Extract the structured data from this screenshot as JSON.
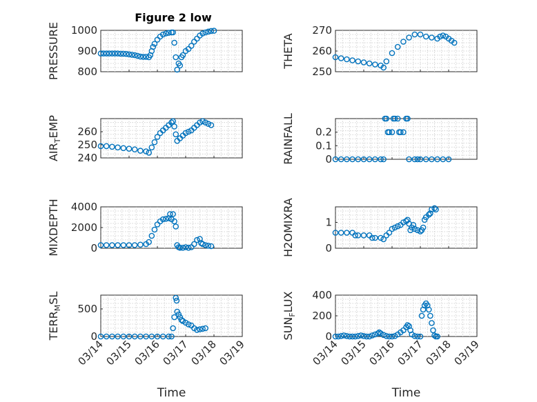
{
  "figure": {
    "title": "Figure 2 low",
    "marker_color": "#0072bd"
  },
  "chart_data": [
    {
      "type": "scatter",
      "ylabel": "PRESSURE",
      "xlabel": "",
      "xlim": [
        0,
        5
      ],
      "ylim": [
        800,
        1000
      ],
      "yticks": [
        800,
        900,
        1000
      ],
      "xticks": [],
      "grid": true,
      "points": [
        [
          0,
          888
        ],
        [
          0.1,
          888
        ],
        [
          0.2,
          888
        ],
        [
          0.3,
          888
        ],
        [
          0.4,
          888
        ],
        [
          0.5,
          888
        ],
        [
          0.6,
          888
        ],
        [
          0.7,
          887
        ],
        [
          0.8,
          887
        ],
        [
          0.9,
          886
        ],
        [
          1.0,
          884
        ],
        [
          1.1,
          882
        ],
        [
          1.2,
          880
        ],
        [
          1.3,
          877
        ],
        [
          1.4,
          873
        ],
        [
          1.5,
          872
        ],
        [
          1.6,
          872
        ],
        [
          1.7,
          870
        ],
        [
          1.75,
          880
        ],
        [
          1.8,
          900
        ],
        [
          1.85,
          920
        ],
        [
          1.9,
          935
        ],
        [
          2.0,
          955
        ],
        [
          2.1,
          970
        ],
        [
          2.2,
          980
        ],
        [
          2.3,
          985
        ],
        [
          2.4,
          988
        ],
        [
          2.5,
          990
        ],
        [
          2.55,
          990
        ],
        [
          2.6,
          940
        ],
        [
          2.65,
          870
        ],
        [
          2.7,
          810
        ],
        [
          2.75,
          840
        ],
        [
          2.8,
          830
        ],
        [
          2.85,
          870
        ],
        [
          2.9,
          880
        ],
        [
          3.0,
          900
        ],
        [
          3.1,
          910
        ],
        [
          3.2,
          925
        ],
        [
          3.3,
          945
        ],
        [
          3.4,
          960
        ],
        [
          3.5,
          975
        ],
        [
          3.6,
          985
        ],
        [
          3.7,
          990
        ],
        [
          3.8,
          994
        ],
        [
          3.9,
          997
        ],
        [
          4.0,
          998
        ]
      ]
    },
    {
      "type": "scatter",
      "ylabel": "THETA",
      "xlabel": "",
      "xlim": [
        0,
        5
      ],
      "ylim": [
        250,
        270
      ],
      "yticks": [
        250,
        260,
        270
      ],
      "xticks": [],
      "grid": true,
      "points": [
        [
          0,
          257
        ],
        [
          0.2,
          256.5
        ],
        [
          0.4,
          256
        ],
        [
          0.6,
          255.5
        ],
        [
          0.8,
          255
        ],
        [
          1.0,
          254.5
        ],
        [
          1.2,
          254
        ],
        [
          1.4,
          253.5
        ],
        [
          1.6,
          253
        ],
        [
          1.7,
          252
        ],
        [
          1.8,
          255
        ],
        [
          2.0,
          259
        ],
        [
          2.2,
          262
        ],
        [
          2.4,
          264.5
        ],
        [
          2.6,
          266.5
        ],
        [
          2.8,
          268
        ],
        [
          3.0,
          268
        ],
        [
          3.2,
          267
        ],
        [
          3.4,
          266.5
        ],
        [
          3.6,
          266
        ],
        [
          3.7,
          267
        ],
        [
          3.8,
          267.5
        ],
        [
          3.9,
          267
        ],
        [
          4.0,
          266
        ],
        [
          4.1,
          265
        ],
        [
          4.2,
          264
        ]
      ]
    },
    {
      "type": "scatter",
      "ylabel": "AIR_TEMP",
      "xlabel": "",
      "xlim": [
        0,
        5
      ],
      "ylim": [
        240,
        270
      ],
      "yticks": [
        240,
        250,
        260
      ],
      "xticks": [],
      "grid": true,
      "points": [
        [
          0,
          249
        ],
        [
          0.2,
          249
        ],
        [
          0.4,
          248.5
        ],
        [
          0.6,
          248
        ],
        [
          0.8,
          247.5
        ],
        [
          1.0,
          247
        ],
        [
          1.2,
          246.5
        ],
        [
          1.4,
          245.5
        ],
        [
          1.6,
          245
        ],
        [
          1.7,
          244
        ],
        [
          1.8,
          248
        ],
        [
          1.9,
          252
        ],
        [
          2.0,
          256
        ],
        [
          2.1,
          259
        ],
        [
          2.2,
          261
        ],
        [
          2.3,
          263
        ],
        [
          2.4,
          265
        ],
        [
          2.5,
          267
        ],
        [
          2.55,
          268
        ],
        [
          2.6,
          264
        ],
        [
          2.65,
          258
        ],
        [
          2.7,
          253
        ],
        [
          2.8,
          255
        ],
        [
          2.9,
          257
        ],
        [
          3.0,
          259
        ],
        [
          3.1,
          260
        ],
        [
          3.2,
          261
        ],
        [
          3.3,
          263
        ],
        [
          3.4,
          265
        ],
        [
          3.5,
          267
        ],
        [
          3.6,
          268
        ],
        [
          3.7,
          267
        ],
        [
          3.8,
          266
        ],
        [
          3.9,
          265
        ]
      ]
    },
    {
      "type": "scatter",
      "ylabel": "RAINFALL",
      "xlabel": "",
      "xlim": [
        0,
        5
      ],
      "ylim": [
        0,
        0.3
      ],
      "yticks": [
        0,
        0.1,
        0.2
      ],
      "xticks": [],
      "grid": true,
      "points": [
        [
          0,
          0
        ],
        [
          0.2,
          0
        ],
        [
          0.4,
          0
        ],
        [
          0.6,
          0
        ],
        [
          0.8,
          0
        ],
        [
          1.0,
          0
        ],
        [
          1.2,
          0
        ],
        [
          1.4,
          0
        ],
        [
          1.6,
          0
        ],
        [
          1.7,
          0
        ],
        [
          1.75,
          0.3
        ],
        [
          1.8,
          0.3
        ],
        [
          1.85,
          0.2
        ],
        [
          1.9,
          0.2
        ],
        [
          2.0,
          0.2
        ],
        [
          2.05,
          0.3
        ],
        [
          2.1,
          0.3
        ],
        [
          2.2,
          0.3
        ],
        [
          2.25,
          0.2
        ],
        [
          2.3,
          0.2
        ],
        [
          2.4,
          0.2
        ],
        [
          2.5,
          0.3
        ],
        [
          2.55,
          0.3
        ],
        [
          2.6,
          0
        ],
        [
          2.8,
          0
        ],
        [
          2.9,
          0
        ],
        [
          3.0,
          0
        ],
        [
          3.2,
          0
        ],
        [
          3.4,
          0
        ],
        [
          3.6,
          0
        ],
        [
          3.8,
          0
        ],
        [
          4.0,
          0
        ]
      ]
    },
    {
      "type": "scatter",
      "ylabel": "MIXDEPTH",
      "xlabel": "",
      "xlim": [
        0,
        5
      ],
      "ylim": [
        0,
        4000
      ],
      "yticks": [
        0,
        2000,
        4000
      ],
      "xticks": [],
      "grid": true,
      "points": [
        [
          0,
          300
        ],
        [
          0.2,
          300
        ],
        [
          0.4,
          300
        ],
        [
          0.6,
          300
        ],
        [
          0.8,
          300
        ],
        [
          1.0,
          300
        ],
        [
          1.2,
          300
        ],
        [
          1.4,
          350
        ],
        [
          1.6,
          400
        ],
        [
          1.7,
          600
        ],
        [
          1.8,
          1200
        ],
        [
          1.9,
          1800
        ],
        [
          2.0,
          2300
        ],
        [
          2.1,
          2600
        ],
        [
          2.2,
          2800
        ],
        [
          2.3,
          2850
        ],
        [
          2.4,
          2900
        ],
        [
          2.45,
          3300
        ],
        [
          2.5,
          2800
        ],
        [
          2.55,
          3300
        ],
        [
          2.6,
          2600
        ],
        [
          2.65,
          2100
        ],
        [
          2.7,
          300
        ],
        [
          2.75,
          100
        ],
        [
          2.8,
          50
        ],
        [
          2.9,
          50
        ],
        [
          3.0,
          100
        ],
        [
          3.1,
          50
        ],
        [
          3.2,
          100
        ],
        [
          3.3,
          400
        ],
        [
          3.4,
          800
        ],
        [
          3.5,
          900
        ],
        [
          3.55,
          500
        ],
        [
          3.6,
          400
        ],
        [
          3.7,
          300
        ],
        [
          3.8,
          250
        ],
        [
          3.9,
          200
        ]
      ]
    },
    {
      "type": "scatter",
      "ylabel": "H2OMIXRA",
      "xlabel": "",
      "xlim": [
        0,
        5
      ],
      "ylim": [
        0,
        1.6
      ],
      "yticks": [
        0,
        1
      ],
      "xticks": [],
      "grid": true,
      "points": [
        [
          0,
          0.6
        ],
        [
          0.2,
          0.6
        ],
        [
          0.4,
          0.6
        ],
        [
          0.6,
          0.6
        ],
        [
          0.7,
          0.5
        ],
        [
          0.8,
          0.5
        ],
        [
          1.0,
          0.5
        ],
        [
          1.2,
          0.5
        ],
        [
          1.3,
          0.4
        ],
        [
          1.4,
          0.4
        ],
        [
          1.6,
          0.4
        ],
        [
          1.7,
          0.35
        ],
        [
          1.8,
          0.5
        ],
        [
          1.9,
          0.6
        ],
        [
          2.0,
          0.75
        ],
        [
          2.1,
          0.8
        ],
        [
          2.2,
          0.85
        ],
        [
          2.3,
          0.9
        ],
        [
          2.4,
          1.0
        ],
        [
          2.5,
          1.05
        ],
        [
          2.55,
          1.1
        ],
        [
          2.6,
          0.95
        ],
        [
          2.65,
          0.7
        ],
        [
          2.7,
          0.8
        ],
        [
          2.75,
          0.9
        ],
        [
          2.8,
          0.75
        ],
        [
          2.9,
          0.7
        ],
        [
          3.0,
          0.65
        ],
        [
          3.05,
          0.7
        ],
        [
          3.1,
          0.8
        ],
        [
          3.15,
          1.1
        ],
        [
          3.2,
          1.2
        ],
        [
          3.3,
          1.3
        ],
        [
          3.35,
          1.35
        ],
        [
          3.4,
          1.5
        ],
        [
          3.5,
          1.55
        ],
        [
          3.55,
          1.5
        ]
      ]
    },
    {
      "type": "scatter",
      "ylabel": "TERR_MSL",
      "xlabel": "Time",
      "xlim": [
        0,
        5
      ],
      "ylim": [
        0,
        750
      ],
      "yticks": [
        0,
        500
      ],
      "xticks": [
        "03/14",
        "03/15",
        "03/16",
        "03/17",
        "03/18",
        "03/19"
      ],
      "grid": true,
      "points": [
        [
          0,
          0
        ],
        [
          0.2,
          0
        ],
        [
          0.4,
          0
        ],
        [
          0.6,
          0
        ],
        [
          0.8,
          0
        ],
        [
          1.0,
          0
        ],
        [
          1.2,
          0
        ],
        [
          1.4,
          0
        ],
        [
          1.6,
          0
        ],
        [
          1.8,
          0
        ],
        [
          2.0,
          0
        ],
        [
          2.2,
          0
        ],
        [
          2.4,
          0
        ],
        [
          2.5,
          0
        ],
        [
          2.55,
          150
        ],
        [
          2.6,
          350
        ],
        [
          2.65,
          700
        ],
        [
          2.68,
          650
        ],
        [
          2.7,
          450
        ],
        [
          2.75,
          400
        ],
        [
          2.8,
          350
        ],
        [
          2.85,
          300
        ],
        [
          2.9,
          280
        ],
        [
          3.0,
          250
        ],
        [
          3.1,
          220
        ],
        [
          3.2,
          200
        ],
        [
          3.3,
          150
        ],
        [
          3.4,
          120
        ],
        [
          3.5,
          130
        ],
        [
          3.6,
          140
        ],
        [
          3.7,
          150
        ]
      ]
    },
    {
      "type": "scatter",
      "ylabel": "SUN_FLUX",
      "xlabel": "Time",
      "xlim": [
        0,
        5
      ],
      "ylim": [
        0,
        400
      ],
      "yticks": [
        0,
        200,
        400
      ],
      "xticks": [
        "03/14",
        "03/15",
        "03/16",
        "03/17",
        "03/18",
        "03/19"
      ],
      "grid": true,
      "points": [
        [
          0,
          0
        ],
        [
          0.1,
          0
        ],
        [
          0.2,
          5
        ],
        [
          0.3,
          10
        ],
        [
          0.4,
          5
        ],
        [
          0.5,
          0
        ],
        [
          0.6,
          0
        ],
        [
          0.7,
          0
        ],
        [
          0.8,
          5
        ],
        [
          0.9,
          10
        ],
        [
          1.0,
          5
        ],
        [
          1.1,
          0
        ],
        [
          1.2,
          0
        ],
        [
          1.3,
          10
        ],
        [
          1.4,
          20
        ],
        [
          1.5,
          30
        ],
        [
          1.55,
          40
        ],
        [
          1.6,
          30
        ],
        [
          1.7,
          15
        ],
        [
          1.8,
          5
        ],
        [
          1.9,
          0
        ],
        [
          2.0,
          0
        ],
        [
          2.1,
          5
        ],
        [
          2.2,
          20
        ],
        [
          2.3,
          40
        ],
        [
          2.4,
          60
        ],
        [
          2.5,
          90
        ],
        [
          2.55,
          110
        ],
        [
          2.6,
          100
        ],
        [
          2.65,
          60
        ],
        [
          2.7,
          20
        ],
        [
          2.8,
          5
        ],
        [
          2.9,
          0
        ],
        [
          3.0,
          0
        ],
        [
          3.05,
          200
        ],
        [
          3.1,
          260
        ],
        [
          3.15,
          300
        ],
        [
          3.2,
          320
        ],
        [
          3.25,
          300
        ],
        [
          3.3,
          260
        ],
        [
          3.35,
          200
        ],
        [
          3.4,
          130
        ],
        [
          3.45,
          60
        ],
        [
          3.5,
          10
        ],
        [
          3.55,
          0
        ],
        [
          3.6,
          0
        ]
      ]
    }
  ]
}
